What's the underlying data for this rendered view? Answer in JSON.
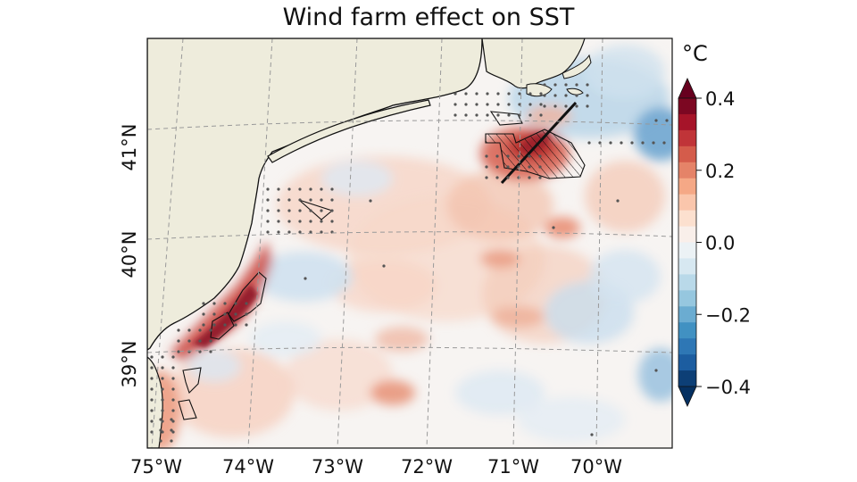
{
  "title": "Wind farm effect on SST",
  "colorbar": {
    "unit": "°C",
    "min": -0.4,
    "max": 0.4,
    "ticks": [
      "0.4",
      "0.2",
      "0.0",
      "−0.2",
      "−0.4"
    ],
    "colors": [
      "#053061",
      "#2166ac",
      "#4393c3",
      "#92c5de",
      "#d1e5f0",
      "#f7f7f7",
      "#fddbc7",
      "#f4a582",
      "#d6604d",
      "#b2182b",
      "#67001f"
    ]
  },
  "map": {
    "lon_labels": [
      "75°W",
      "74°W",
      "73°W",
      "72°W",
      "71°W",
      "70°W"
    ],
    "lat_labels": [
      "39°N",
      "40°N",
      "41°N"
    ],
    "land_color": "#eeecdc",
    "grid": true
  }
}
